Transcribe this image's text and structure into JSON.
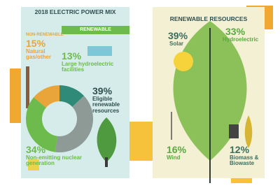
{
  "left": {
    "title": "2018 ELECTRIC POWER MIX",
    "renewable_tag": "RENEWABLE",
    "non_renewable_tag": "NON-RENEWABLE",
    "segments": [
      {
        "value": 15,
        "value_label": "15%",
        "label": "Natural gas/other",
        "color": "#e9a53a"
      },
      {
        "value": 13,
        "value_label": "13%",
        "label": "Large hydroelectric facilities",
        "color": "#2f8a78"
      },
      {
        "value": 39,
        "value_label": "39%",
        "label": "Eligible renewable resources",
        "color": "#8d9a96"
      },
      {
        "value": 34,
        "value_label": "34%",
        "label": "Non-emitting nuclear generation",
        "color": "#6cbb4c"
      }
    ]
  },
  "right": {
    "title": "RENEWABLE RESOURCES",
    "items": [
      {
        "value_label": "39%",
        "label": "Solar"
      },
      {
        "value_label": "33%",
        "label": "Hydroelectric"
      },
      {
        "value_label": "16%",
        "label": "Wind"
      },
      {
        "value_label": "12%",
        "label": "Biomass & Biowaste"
      }
    ]
  }
}
